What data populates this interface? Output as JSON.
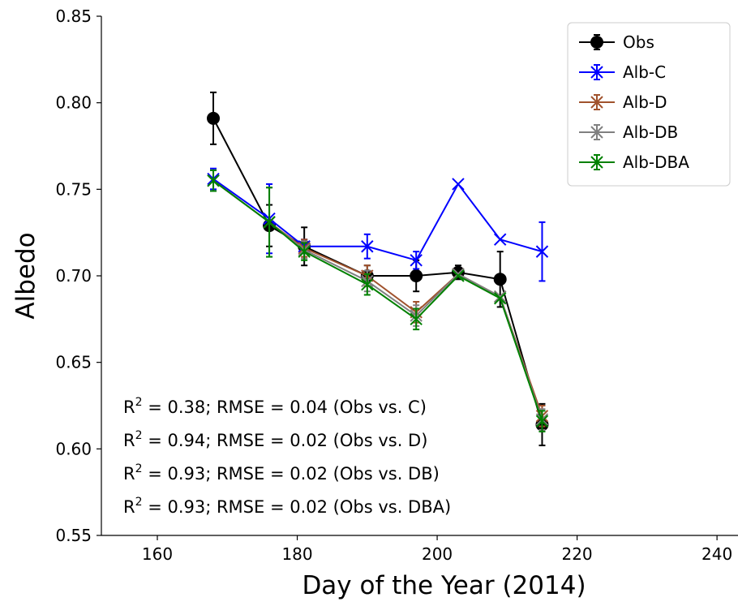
{
  "chart_data": {
    "type": "line",
    "xlabel": "Day of the Year (2014)",
    "ylabel": "Albedo",
    "xlim": [
      152,
      243
    ],
    "ylim": [
      0.55,
      0.85
    ],
    "xticks": [
      160,
      180,
      200,
      220,
      240
    ],
    "yticks": [
      0.55,
      0.6,
      0.65,
      0.7,
      0.75,
      0.8,
      0.85
    ],
    "grid": false,
    "legend_position": "top-right",
    "series": [
      {
        "name": "Obs",
        "color": "#000000",
        "marker": "circle",
        "x": [
          168,
          176,
          181,
          190,
          197,
          203,
          209,
          215
        ],
        "y": [
          0.791,
          0.729,
          0.717,
          0.7,
          0.7,
          0.702,
          0.698,
          0.614
        ],
        "err": [
          0.015,
          0.012,
          0.011,
          0.006,
          0.009,
          0.004,
          0.016,
          0.012
        ]
      },
      {
        "name": "Alb-C",
        "color": "#0000ff",
        "marker": "x",
        "x": [
          168,
          176,
          181,
          190,
          197,
          203,
          209,
          215
        ],
        "y": [
          0.756,
          0.733,
          0.717,
          0.717,
          0.709,
          0.753,
          0.721,
          0.714
        ],
        "err": [
          0.006,
          0.02,
          0.004,
          0.007,
          0.005,
          0.0,
          0.0,
          0.017
        ]
      },
      {
        "name": "Alb-D",
        "color": "#a0522d",
        "marker": "x",
        "x": [
          168,
          176,
          181,
          190,
          197,
          203,
          209,
          215
        ],
        "y": [
          0.755,
          0.731,
          0.716,
          0.7,
          0.679,
          0.701,
          0.688,
          0.619
        ],
        "err": [
          0.006,
          0.02,
          0.005,
          0.006,
          0.006,
          0.0,
          0.0,
          0.006
        ]
      },
      {
        "name": "Alb-DB",
        "color": "#808080",
        "marker": "x",
        "x": [
          168,
          176,
          181,
          190,
          197,
          203,
          209,
          215
        ],
        "y": [
          0.755,
          0.731,
          0.715,
          0.697,
          0.677,
          0.701,
          0.688,
          0.617
        ],
        "err": [
          0.006,
          0.02,
          0.005,
          0.006,
          0.006,
          0.0,
          0.0,
          0.006
        ]
      },
      {
        "name": "Alb-DBA",
        "color": "#008000",
        "marker": "x",
        "x": [
          168,
          176,
          181,
          190,
          197,
          203,
          209,
          215
        ],
        "y": [
          0.755,
          0.731,
          0.714,
          0.695,
          0.675,
          0.7,
          0.687,
          0.616
        ],
        "err": [
          0.006,
          0.02,
          0.005,
          0.006,
          0.006,
          0.0,
          0.0,
          0.006
        ]
      }
    ],
    "annotations": [
      {
        "prefix": "R",
        "sup": "2",
        "text": " = 0.38; RMSE = 0.04 (Obs vs. C)"
      },
      {
        "prefix": "R",
        "sup": "2",
        "text": " = 0.94; RMSE = 0.02 (Obs vs. D)"
      },
      {
        "prefix": "R",
        "sup": "2",
        "text": " = 0.93; RMSE = 0.02 (Obs vs. DB)"
      },
      {
        "prefix": "R",
        "sup": "2",
        "text": " = 0.93; RMSE = 0.02 (Obs vs. DBA)"
      }
    ]
  }
}
